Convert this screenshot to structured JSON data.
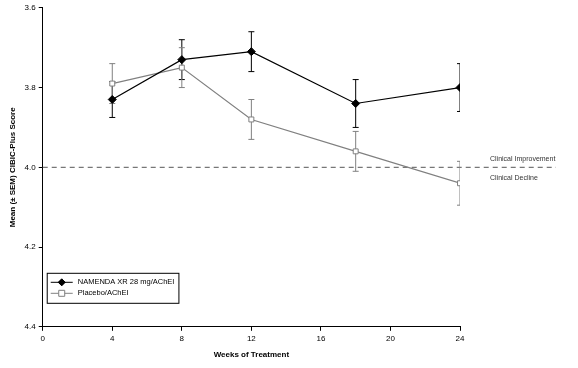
{
  "chart_data": {
    "type": "line",
    "x_label": "Weeks of Treatment",
    "y_label": "Mean (± SEM) CIBIC-Plus Score",
    "xlim": [
      0,
      24
    ],
    "xticks": [
      0,
      4,
      8,
      12,
      16,
      20,
      24
    ],
    "ylim": [
      3.6,
      4.4
    ],
    "yticks": [
      3.6,
      3.8,
      {
        "value": 4,
        "label": "4.0"
      },
      4.2,
      4.4
    ],
    "y_reversed": true,
    "grid": false,
    "legend": "lower left",
    "reference_line": {
      "y": 4,
      "line_style": "dashed"
    },
    "annotations": [
      {
        "text": "Clinical Improvement",
        "position": "above"
      },
      {
        "text": "Clinical Decline",
        "position": "below"
      }
    ],
    "x": [
      4,
      8,
      12,
      18,
      24
    ],
    "series": [
      {
        "name": "NAMENDA XR 28 mg/AChEI",
        "color": "#000000",
        "marker": "diamond",
        "line_style": "solid",
        "values": [
          3.83,
          3.73,
          3.71,
          3.84,
          3.8
        ],
        "error": [
          0.045,
          0.05,
          0.05,
          0.06,
          0.06
        ]
      },
      {
        "name": "Placebo/AChEI",
        "color": "#808080",
        "marker": "open_square",
        "line_style": "solid",
        "values": [
          3.79,
          3.75,
          3.88,
          3.96,
          4.04
        ],
        "error": [
          0.05,
          0.05,
          0.05,
          0.05,
          0.055
        ]
      }
    ]
  }
}
